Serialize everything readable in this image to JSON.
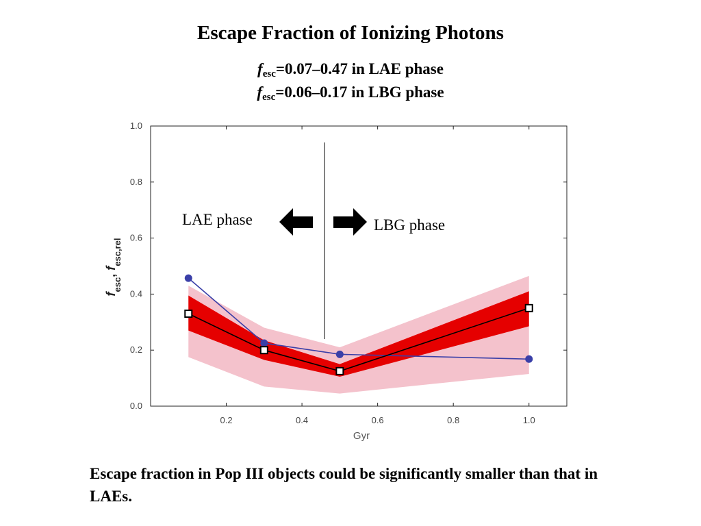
{
  "slide": {
    "title": "Escape Fraction of Ionizing Photons",
    "subtitle_lines": [
      {
        "symbol": "f",
        "subscript": "esc",
        "text": "=0.07–0.47 in LAE phase"
      },
      {
        "symbol": "f",
        "subscript": "esc",
        "text": "=0.06–0.17 in LBG phase"
      }
    ],
    "caption": "Escape fraction in Pop III objects could be significantly smaller than that in LAEs."
  },
  "chart_data": {
    "type": "line",
    "xlabel": "Gyr",
    "ylabel": "f_esc, f_esc,rel",
    "xlim": [
      0.0,
      1.1
    ],
    "ylim": [
      0.0,
      1.0
    ],
    "x_ticks": [
      "0.2",
      "0.4",
      "0.6",
      "0.8",
      "1.0"
    ],
    "y_ticks": [
      "0.0",
      "0.2",
      "0.4",
      "0.6",
      "0.8",
      "1.0"
    ],
    "series": [
      {
        "x": [
          0.1,
          0.3,
          0.5,
          1.0
        ],
        "y": [
          0.457,
          0.225,
          0.185,
          0.168
        ],
        "color": "#3a3fa8",
        "marker": "circle"
      },
      {
        "x": [
          0.1,
          0.3,
          0.5,
          1.0
        ],
        "y": [
          0.33,
          0.2,
          0.125,
          0.35
        ],
        "color": "#000000",
        "marker": "square"
      }
    ],
    "bands": [
      {
        "x": [
          0.1,
          0.3,
          0.5,
          1.0
        ],
        "lower": [
          0.175,
          0.07,
          0.045,
          0.115
        ],
        "upper": [
          0.43,
          0.28,
          0.21,
          0.465
        ],
        "color": "#f4c2cc"
      },
      {
        "x": [
          0.1,
          0.3,
          0.5,
          1.0
        ],
        "lower": [
          0.27,
          0.165,
          0.105,
          0.285
        ],
        "upper": [
          0.395,
          0.235,
          0.15,
          0.41
        ],
        "color": "#e50000"
      }
    ],
    "divider_x": 0.46,
    "annotations": [
      {
        "text": "LAE phase",
        "arrow": "left"
      },
      {
        "text": "LBG phase",
        "arrow": "right"
      }
    ],
    "grid": false,
    "legend": false
  }
}
